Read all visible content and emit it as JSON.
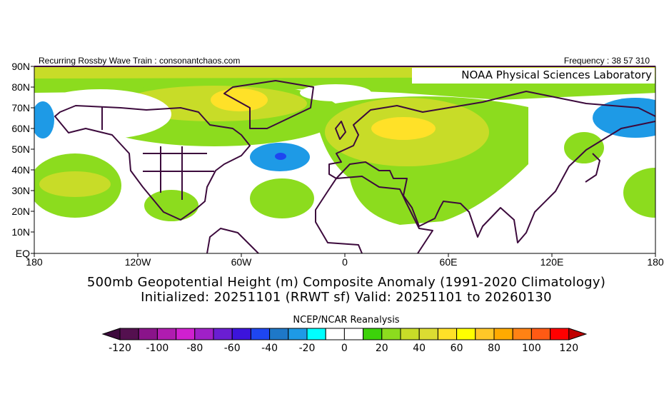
{
  "header": {
    "left": "Recurring Rossby Wave Train : consonantchaos.com",
    "right": "Frequency : 38 57 310",
    "lab_label": "NOAA Physical Sciences Laboratory"
  },
  "map": {
    "lat_labels": [
      "90N",
      "80N",
      "70N",
      "60N",
      "50N",
      "40N",
      "30N",
      "20N",
      "10N",
      "EQ"
    ],
    "lon_labels": [
      "180",
      "120W",
      "60W",
      "0",
      "60E",
      "120E",
      "180"
    ]
  },
  "titles": {
    "line1": "500mb Geopotential Height (m) Composite Anomaly (1991-2020 Climatology)",
    "line2": "Initialized: 20251101 (RRWT sf) Valid: 20251101 to 20260130"
  },
  "colorbar": {
    "title": "NCEP/NCAR Reanalysis",
    "labels": [
      "-120",
      "-100",
      "-80",
      "-60",
      "-40",
      "-20",
      "0",
      "20",
      "40",
      "60",
      "80",
      "100",
      "120"
    ],
    "low_color": "#3c0a3c",
    "high_color": "#c00000",
    "colors": [
      "#54104f",
      "#8a148a",
      "#b01cb0",
      "#d020d0",
      "#a020c8",
      "#6a1ed2",
      "#3c14dc",
      "#1e46f0",
      "#1e78c8",
      "#1e9ae6",
      "#00ffff",
      "#ffffff",
      "#ffffff",
      "#3cd20a",
      "#8cdc1e",
      "#c8dc28",
      "#dcdc32",
      "#ffe128",
      "#ffff00",
      "#ffc828",
      "#ffaa00",
      "#ff8214",
      "#ff5a14",
      "#ff0000"
    ]
  }
}
